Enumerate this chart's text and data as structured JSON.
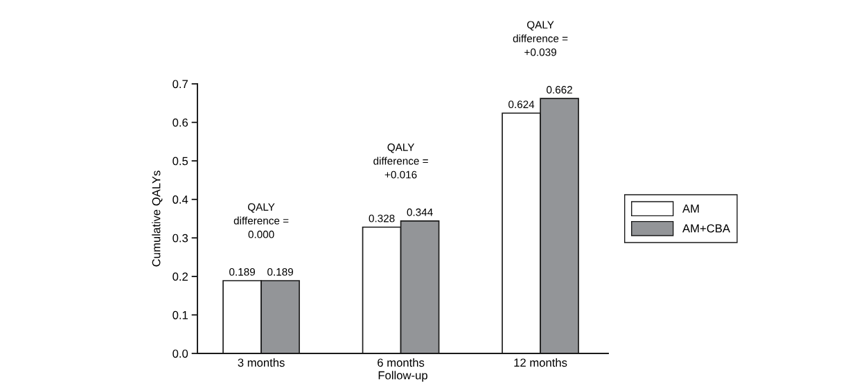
{
  "chart_data": {
    "type": "bar",
    "xlabel": "Follow-up",
    "ylabel": "Cumulative QALYs",
    "categories": [
      "3 months",
      "6 months",
      "12 months"
    ],
    "series": [
      {
        "name": "AM",
        "color": "#ffffff",
        "values": [
          0.189,
          0.328,
          0.624
        ]
      },
      {
        "name": "AM+CBA",
        "color": "#939598",
        "values": [
          0.189,
          0.344,
          0.662
        ]
      }
    ],
    "ylim": [
      0,
      0.7
    ],
    "yticks": [
      {
        "value": 0,
        "label": "0.0"
      },
      0.1,
      0.2,
      0.3,
      0.4,
      0.5,
      0.6,
      0.7
    ],
    "data_labels": true,
    "grid": false,
    "legend": "right",
    "annotations": [
      "QALY\ndifference =\n0.000",
      "QALY\ndifference =\n+0.016",
      "QALY\ndifference =\n+0.039"
    ]
  }
}
